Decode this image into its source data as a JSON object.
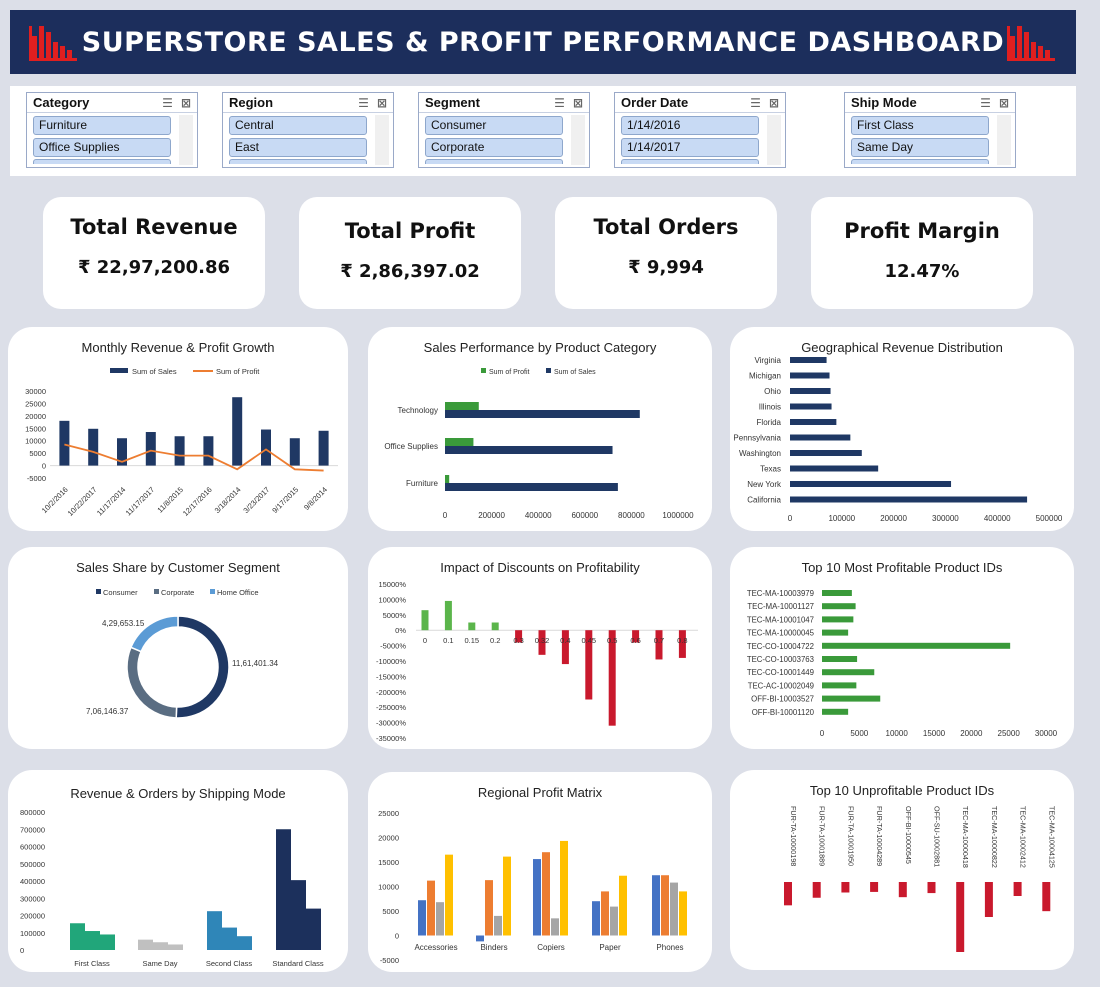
{
  "header": {
    "title": "SUPERSTORE SALES & PROFIT PERFORMANCE DASHBOARD",
    "logo_color": "#e01f1f"
  },
  "filters": [
    {
      "label": "Category",
      "items": [
        "Furniture",
        "Office Supplies"
      ]
    },
    {
      "label": "Region",
      "items": [
        "Central",
        "East"
      ]
    },
    {
      "label": "Segment",
      "items": [
        "Consumer",
        "Corporate"
      ]
    },
    {
      "label": "Order Date",
      "items": [
        "1/14/2016",
        "1/14/2017"
      ]
    },
    {
      "label": "Ship Mode",
      "items": [
        "First Class",
        "Same Day"
      ]
    }
  ],
  "kpis": [
    {
      "label": "Total Revenue",
      "value": "₹ 22,97,200.86"
    },
    {
      "label": "Total Profit",
      "value": "₹ 2,86,397.02"
    },
    {
      "label": "Total Orders",
      "value": "₹ 9,994"
    },
    {
      "label": "Profit Margin",
      "value": "12.47%"
    }
  ],
  "colors": {
    "navy": "#1f3864",
    "orange": "#ed7d31",
    "green": "#3a9a3a",
    "red": "#c9192d",
    "lightblue": "#5b9bd5",
    "gray": "#a5a5a5",
    "yellow": "#ffc000",
    "blue": "#4472c4"
  },
  "chart_data": [
    {
      "id": "monthly",
      "type": "bar",
      "title": "Monthly Revenue & Profit Growth",
      "categories": [
        "10/2/2016",
        "10/22/2017",
        "11/17/2014",
        "11/17/2017",
        "11/8/2015",
        "12/17/2016",
        "3/18/2014",
        "3/23/2017",
        "9/17/2015",
        "9/8/2014"
      ],
      "series": [
        {
          "name": "Sum of Sales",
          "type": "bar",
          "values": [
            18000,
            14800,
            11000,
            13500,
            11800,
            11800,
            27500,
            14500,
            11000,
            14000
          ]
        },
        {
          "name": "Sum of Profit",
          "type": "line",
          "values": [
            8500,
            5500,
            1500,
            6000,
            4000,
            4000,
            -1500,
            6500,
            -1500,
            -2000
          ]
        }
      ],
      "yticks": [
        "30000",
        "25000",
        "20000",
        "15000",
        "10000",
        "5000",
        "0",
        "-5000"
      ],
      "ylim": [
        -5000,
        30000
      ]
    },
    {
      "id": "category",
      "type": "bar",
      "title": "Sales Performance by Product Category",
      "categories": [
        "Technology",
        "Office Supplies",
        "Furniture"
      ],
      "series": [
        {
          "name": "Sum of Profit",
          "values": [
            145000,
            122000,
            18000
          ]
        },
        {
          "name": "Sum of Sales",
          "values": [
            836000,
            719000,
            742000
          ]
        }
      ],
      "xticks": [
        "0",
        "200000",
        "400000",
        "600000",
        "800000",
        "1000000"
      ],
      "xlim": [
        0,
        1000000
      ]
    },
    {
      "id": "geo",
      "type": "bar",
      "title": "Geographical Revenue Distribution",
      "categories": [
        "Virginia",
        "Michigan",
        "Ohio",
        "Illinois",
        "Florida",
        "Pennsylvania",
        "Washington",
        "Texas",
        "New York",
        "California"
      ],
      "values": [
        70600,
        76300,
        78300,
        80200,
        89500,
        116500,
        138600,
        170200,
        310900,
        457700
      ],
      "xticks": [
        "0",
        "100000",
        "200000",
        "300000",
        "400000",
        "500000"
      ],
      "xlim": [
        0,
        500000
      ]
    },
    {
      "id": "segment",
      "type": "pie",
      "title": "Sales Share by Customer Segment",
      "categories": [
        "Consumer",
        "Corporate",
        "Home Office"
      ],
      "values": [
        1161401.34,
        706146.37,
        429653.15
      ],
      "data_labels": [
        "11,61,401.34",
        "7,06,146.37",
        "4,29,653.15"
      ]
    },
    {
      "id": "discount",
      "type": "bar",
      "title": "Impact of Discounts on Profitability",
      "categories": [
        "0",
        "0.1",
        "0.15",
        "0.2",
        "0.3",
        "0.32",
        "0.4",
        "0.45",
        "0.5",
        "0.6",
        "0.7",
        "0.8"
      ],
      "values": [
        6500,
        9500,
        2500,
        2500,
        -4000,
        -8000,
        -11000,
        -22500,
        -31000,
        -4000,
        -9500,
        -9000
      ],
      "yticks": [
        "15000%",
        "10000%",
        "5000%",
        "0%",
        "-5000%",
        "-10000%",
        "-15000%",
        "-20000%",
        "-25000%",
        "-30000%",
        "-35000%"
      ],
      "ylim": [
        -35000,
        15000
      ]
    },
    {
      "id": "topprofit",
      "type": "bar",
      "title": "Top 10 Most Profitable Product IDs",
      "categories": [
        "TEC-MA-10003979",
        "TEC-MA-10001127",
        "TEC-MA-10001047",
        "TEC-MA-10000045",
        "TEC-CO-10004722",
        "TEC-CO-10003763",
        "TEC-CO-10001449",
        "TEC-AC-10002049",
        "OFF-BI-10003527",
        "OFF-BI-10001120"
      ],
      "values": [
        4000,
        4500,
        4200,
        3500,
        25200,
        4700,
        7000,
        4600,
        7800,
        3500
      ],
      "xticks": [
        "0",
        "5000",
        "10000",
        "15000",
        "20000",
        "25000",
        "30000"
      ],
      "xlim": [
        0,
        30000
      ]
    },
    {
      "id": "shipping",
      "type": "bar",
      "title": "Revenue & Orders by Shipping Mode",
      "categories": [
        "First Class",
        "Same Day",
        "Second Class",
        "Standard Class"
      ],
      "values": [
        [
          155000,
          110000,
          90000
        ],
        [
          60000,
          45000,
          32000
        ],
        [
          225000,
          130000,
          80000
        ],
        [
          700000,
          405000,
          240000
        ]
      ],
      "yticks": [
        "800000",
        "700000",
        "600000",
        "500000",
        "400000",
        "300000",
        "200000",
        "100000",
        "0"
      ],
      "ylim": [
        0,
        800000
      ]
    },
    {
      "id": "regional",
      "type": "bar",
      "title": "Regional Profit Matrix",
      "categories": [
        "Accessories",
        "Binders",
        "Copiers",
        "Paper",
        "Phones"
      ],
      "series": [
        {
          "values": [
            7200,
            -1200,
            15600,
            7000,
            12300
          ]
        },
        {
          "values": [
            11200,
            11300,
            17000,
            9000,
            12300
          ]
        },
        {
          "values": [
            6800,
            4000,
            3500,
            5900,
            10800
          ]
        },
        {
          "values": [
            16500,
            16100,
            19300,
            12200,
            9000
          ]
        }
      ],
      "yticks": [
        "25000",
        "20000",
        "15000",
        "10000",
        "5000",
        "0",
        "-5000"
      ],
      "ylim": [
        -5000,
        25000
      ]
    },
    {
      "id": "unprofit",
      "type": "bar",
      "title": "Top 10 Unprofitable Product IDs",
      "categories": [
        "FUR-TA-10000198",
        "FUR-TA-10001889",
        "FUR-TA-10001950",
        "FUR-TA-10004289",
        "OFF-BI-10000545",
        "OFF-SU-10002881",
        "TEC-MA-10000418",
        "TEC-MA-10000822",
        "TEC-MA-10002412",
        "TEC-MA-10004125"
      ],
      "values": [
        -4000,
        -2700,
        -1800,
        -1700,
        -2600,
        -1900,
        -12000,
        -6000,
        -2400,
        -5000
      ]
    }
  ]
}
